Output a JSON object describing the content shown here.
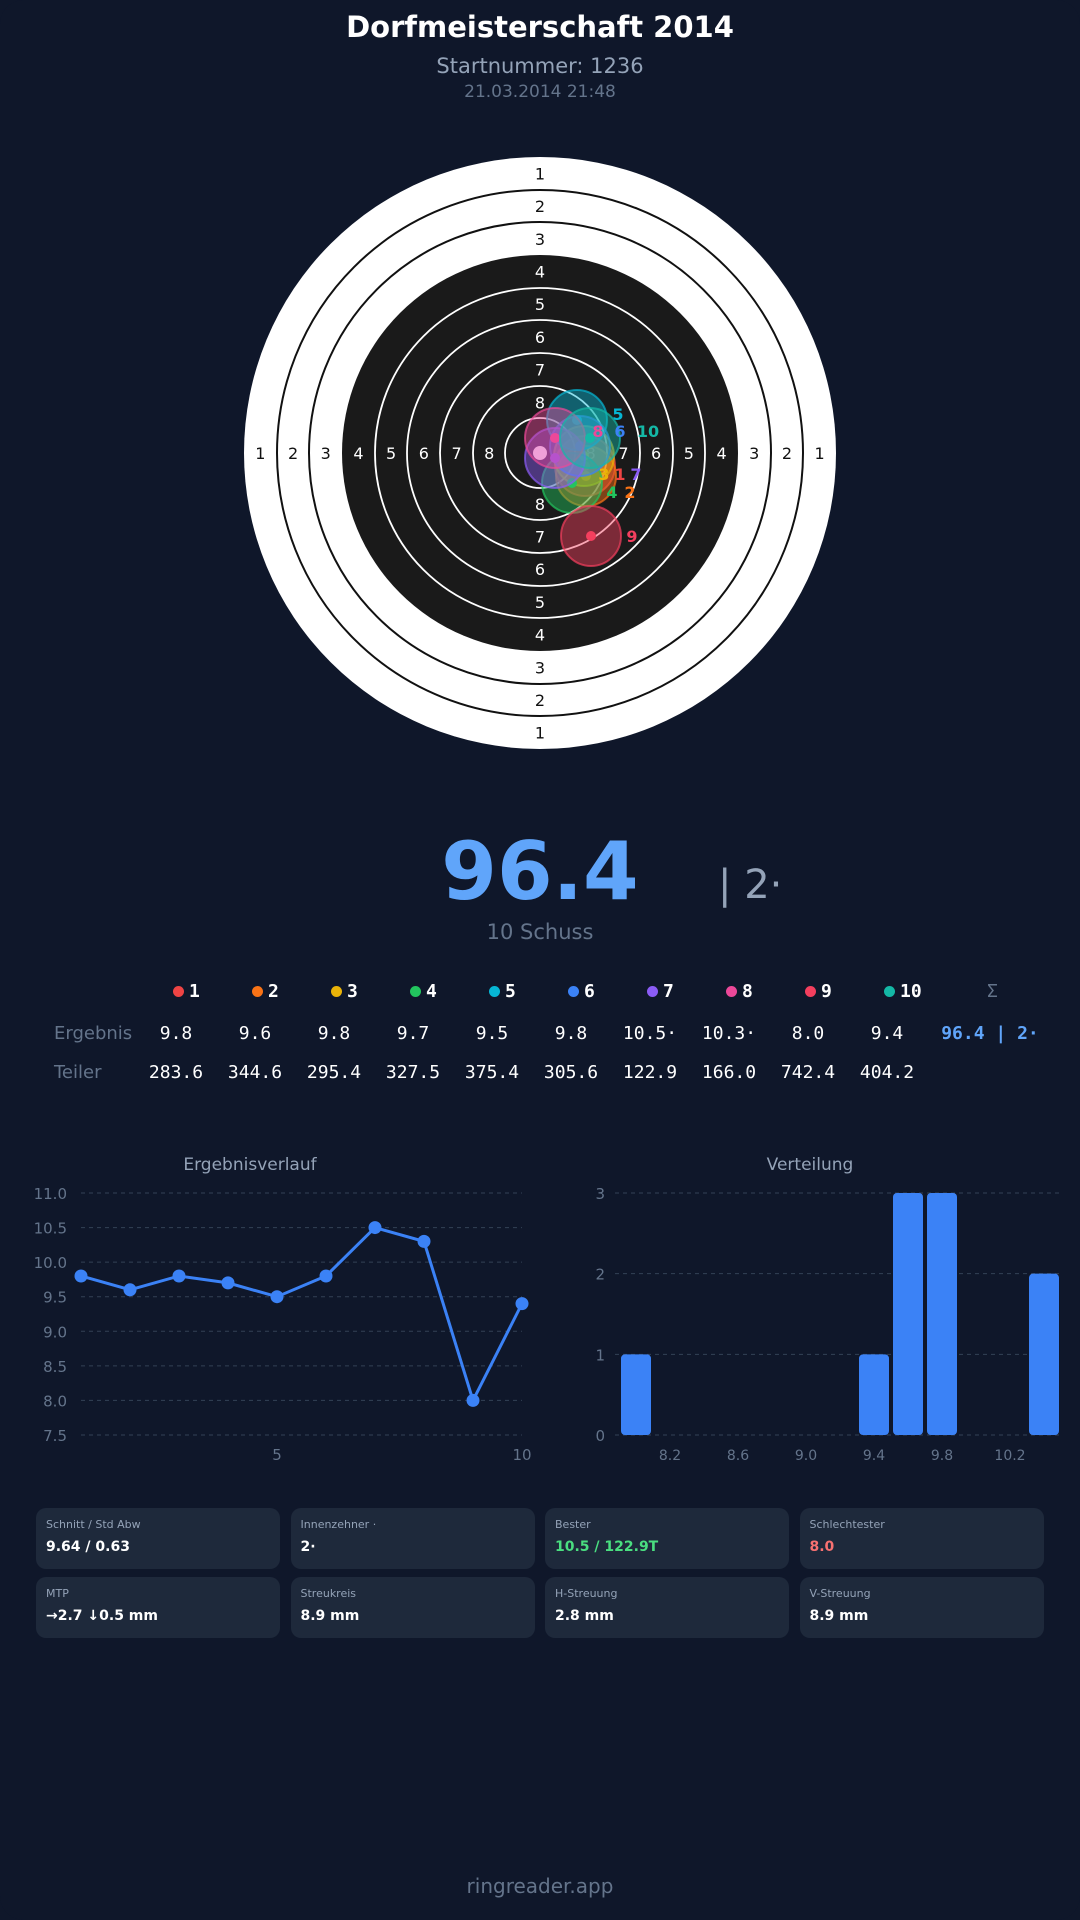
{
  "header": {
    "title": "Dorfmeisterschaft 2014",
    "startnummer": "Startnummer: 1236",
    "datetime": "21.03.2014 21:48"
  },
  "target": {
    "ring_labels": [
      "1",
      "2",
      "3",
      "4",
      "5",
      "6",
      "7",
      "8"
    ]
  },
  "summary": {
    "total": "96.4",
    "innenzehner": "| 2·",
    "shots": "10 Schuss"
  },
  "legend": [
    {
      "label": "1",
      "color": "#ef4444"
    },
    {
      "label": "2",
      "color": "#f97316"
    },
    {
      "label": "3",
      "color": "#eab308"
    },
    {
      "label": "4",
      "color": "#22c55e"
    },
    {
      "label": "5",
      "color": "#06b6d4"
    },
    {
      "label": "6",
      "color": "#3b82f6"
    },
    {
      "label": "7",
      "color": "#8b5cf6"
    },
    {
      "label": "8",
      "color": "#ec4899"
    },
    {
      "label": "9",
      "color": "#f43f5e"
    },
    {
      "label": "10",
      "color": "#14b8a6"
    }
  ],
  "table": {
    "sum_header": "Σ",
    "ergebnis_label": "Ergebnis",
    "teiler_label": "Teiler",
    "ergebnis": [
      "9.8",
      "9.6",
      "9.8",
      "9.7",
      "9.5",
      "9.8",
      "10.5·",
      "10.3·",
      "8.0",
      "9.4"
    ],
    "ergebnis_sum": "96.4 | 2·",
    "teiler": [
      "283.6",
      "344.6",
      "295.4",
      "327.5",
      "375.4",
      "305.6",
      "122.9",
      "166.0",
      "742.4",
      "404.2"
    ]
  },
  "chart_data": [
    {
      "type": "line",
      "title": "Ergebnisverlauf",
      "x": [
        1,
        2,
        3,
        4,
        5,
        6,
        7,
        8,
        9,
        10
      ],
      "values": [
        9.8,
        9.6,
        9.8,
        9.7,
        9.5,
        9.8,
        10.5,
        10.3,
        8.0,
        9.4
      ],
      "ylim": [
        7.5,
        11.0
      ],
      "yticks": [
        "11.0",
        "10.5",
        "10.0",
        "9.5",
        "9.0",
        "8.5",
        "8.0",
        "7.5"
      ],
      "xticks": [
        "5",
        "10"
      ],
      "grid": true,
      "color": "#3b82f6"
    },
    {
      "type": "bar",
      "title": "Verteilung",
      "categories": [
        8.0,
        9.4,
        9.6,
        9.8,
        10.4
      ],
      "values": [
        1,
        1,
        3,
        3,
        2
      ],
      "ylim": [
        0,
        3
      ],
      "yticks": [
        "3",
        "2",
        "1",
        "0"
      ],
      "xticks": [
        "8.2",
        "8.6",
        "9.0",
        "9.4",
        "9.8",
        "10.2"
      ],
      "grid": true,
      "color": "#3b82f6"
    }
  ],
  "stats": [
    {
      "label": "Schnitt / Std Abw",
      "value": "9.64 / 0.63",
      "color": "#ffffff"
    },
    {
      "label": "Innenzehner ·",
      "value": "2·",
      "color": "#ffffff"
    },
    {
      "label": "Bester",
      "value": "10.5 / 122.9T",
      "color": "#4ade80"
    },
    {
      "label": "Schlechtester",
      "value": "8.0",
      "color": "#f87171"
    },
    {
      "label": "MTP",
      "value": "→2.7 ↓0.5 mm",
      "color": "#ffffff"
    },
    {
      "label": "Streukreis",
      "value": "8.9 mm",
      "color": "#ffffff"
    },
    {
      "label": "H-Streuung",
      "value": "2.8 mm",
      "color": "#ffffff"
    },
    {
      "label": "V-Streuung",
      "value": "8.9 mm",
      "color": "#ffffff"
    }
  ],
  "footer": "ringreader.app"
}
